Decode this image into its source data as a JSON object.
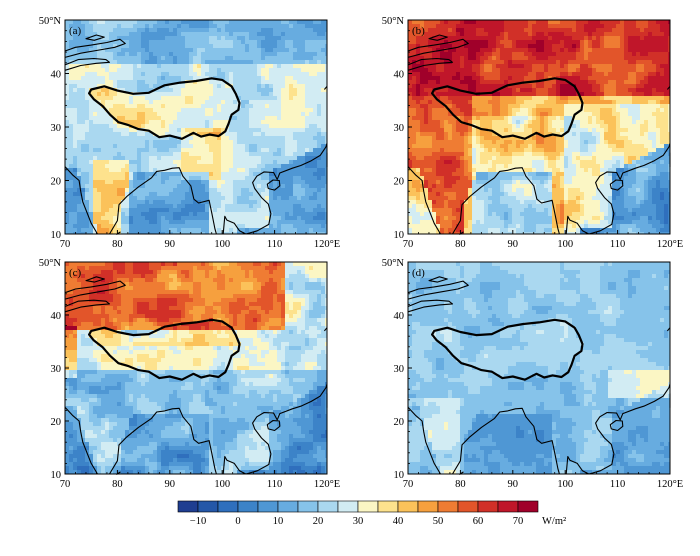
{
  "panels": [
    {
      "id": "a",
      "label": "(a)",
      "mean_level": 26,
      "amplitude": 18
    },
    {
      "id": "b",
      "label": "(b)",
      "mean_level": 42,
      "amplitude": 22
    },
    {
      "id": "c",
      "label": "(c)",
      "mean_level": 30,
      "amplitude": 22
    },
    {
      "id": "d",
      "label": "(d)",
      "mean_level": 18,
      "amplitude": 12
    }
  ],
  "x_ticks": [
    "70",
    "80",
    "90",
    "100",
    "110",
    "120°E"
  ],
  "y_ticks": [
    "50°N",
    "40",
    "30",
    "20",
    "10"
  ],
  "lon_range": [
    70,
    120
  ],
  "lat_range": [
    10,
    50
  ],
  "colorbar": {
    "ticks": [
      "−10",
      "0",
      "10",
      "20",
      "30",
      "40",
      "50",
      "60",
      "70"
    ],
    "unit": "W/m²",
    "range": [
      -15,
      75
    ],
    "colors": [
      "#1f3e91",
      "#2457a8",
      "#2f6fbd",
      "#3c83c8",
      "#4f97d4",
      "#67ace0",
      "#86c3ea",
      "#aad8f0",
      "#d2ecf3",
      "#fbf6c4",
      "#fde28d",
      "#fbc25a",
      "#f6a03e",
      "#ef7c33",
      "#e2552a",
      "#d13028",
      "#c0162a",
      "#a0002a"
    ]
  }
}
